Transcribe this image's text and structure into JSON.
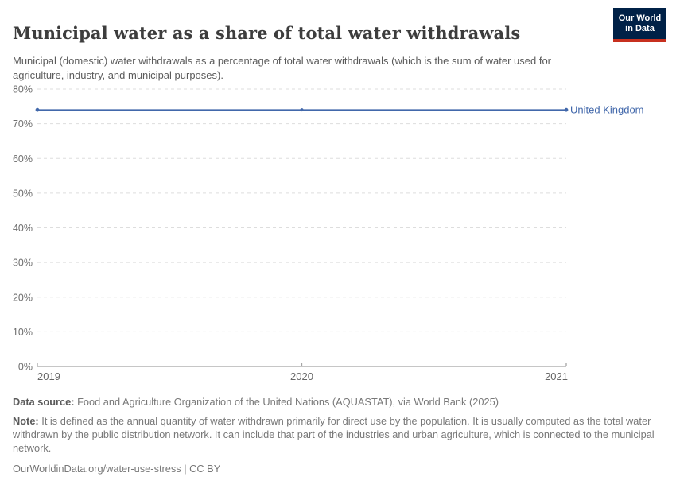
{
  "header": {
    "title": "Municipal water as a share of total water withdrawals",
    "subtitle": "Municipal (domestic) water withdrawals as a percentage of total water withdrawals (which is the sum of water used for agriculture, industry, and municipal purposes).",
    "logo": {
      "line1": "Our World",
      "line2": "in Data"
    }
  },
  "chart_data": {
    "type": "line",
    "title": "Municipal water as a share of total water withdrawals",
    "x": [
      2019,
      2020,
      2021
    ],
    "series": [
      {
        "name": "United Kingdom",
        "values": [
          74,
          74,
          74
        ],
        "color": "#4268ab"
      }
    ],
    "xlim": [
      2019,
      2021
    ],
    "ylim": [
      0,
      80
    ],
    "yticks": [
      {
        "value": 0,
        "label": "0%"
      },
      {
        "value": 10,
        "label": "10%"
      },
      {
        "value": 20,
        "label": "20%"
      },
      {
        "value": 30,
        "label": "30%"
      },
      {
        "value": 40,
        "label": "40%"
      },
      {
        "value": 50,
        "label": "50%"
      },
      {
        "value": 60,
        "label": "60%"
      },
      {
        "value": 70,
        "label": "70%"
      },
      {
        "value": 80,
        "label": "80%"
      }
    ],
    "xticks": [
      {
        "value": 2019,
        "label": "2019"
      },
      {
        "value": 2020,
        "label": "2020"
      },
      {
        "value": 2021,
        "label": "2021"
      }
    ],
    "grid": "horizontal-dashed",
    "legend_position": "label-at-line-end"
  },
  "colors": {
    "series_blue": "#4268ab",
    "grid": "#dddddd",
    "axis": "#a5a5a5",
    "tick_text": "#6e6e6e",
    "logo_bg": "#002147",
    "logo_accent": "#c7301f"
  },
  "footer": {
    "datasource_label": "Data source:",
    "datasource_text": " Food and Agriculture Organization of the United Nations (AQUASTAT), via World Bank (2025)",
    "note_label": "Note:",
    "note_text": " It is defined as the annual quantity of water withdrawn primarily for direct use by the population. It is usually computed as the total water withdrawn by the public distribution network. It can include that part of the industries and urban agriculture, which is connected to the municipal network.",
    "url": "OurWorldinData.org/water-use-stress",
    "separator": " | ",
    "license": "CC BY"
  }
}
